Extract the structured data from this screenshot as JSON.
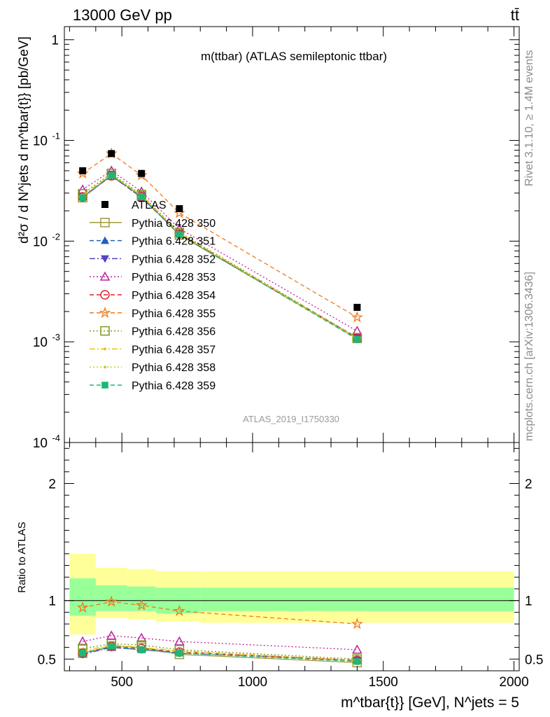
{
  "header": {
    "energy_label": "13000 GeV pp",
    "process_label": "tt̄"
  },
  "side_labels": {
    "rivet": "Rivet 3.1.10, ≥ 1.4M events",
    "mcplots": "mcplots.cern.ch [arXiv:1306.3436]"
  },
  "chart_data": [
    {
      "type": "line",
      "panel": "main",
      "title": "m(ttbar) (ATLAS semileptonic ttbar)",
      "ylabel": "d²σ / d N^jets d m^tbar{t}} [pb/GeV]",
      "xlabel": "",
      "yscale": "log",
      "ylim": [
        0.0001,
        1.35
      ],
      "xlim": [
        280,
        2020
      ],
      "y_tick_labels": [
        "10^-4",
        "10^-3",
        "10^-2",
        "10^-1",
        "1"
      ],
      "watermark": "ATLAS_2019_I1750330",
      "x": [
        350,
        460,
        575,
        720,
        1400
      ],
      "x_edges": [
        300,
        400,
        520,
        630,
        800,
        2000
      ],
      "data": {
        "name": "ATLAS",
        "values": [
          0.05,
          0.074,
          0.047,
          0.021,
          0.0022
        ]
      },
      "legend_position": "center-left",
      "series": [
        {
          "name": "Pythia 6.428 350",
          "color": "#a09a3c",
          "marker": "open-square",
          "dash": "solid",
          "values": [
            0.027,
            0.045,
            0.028,
            0.0115,
            0.00108
          ]
        },
        {
          "name": "Pythia 6.428 351",
          "color": "#1f5fbf",
          "marker": "filled-triangle-up",
          "dash": "dashed",
          "values": [
            0.0275,
            0.045,
            0.027,
            0.0118,
            0.0011
          ]
        },
        {
          "name": "Pythia 6.428 352",
          "color": "#5a3fbf",
          "marker": "filled-triangle-down",
          "dash": "dashdot",
          "values": [
            0.027,
            0.0445,
            0.027,
            0.0117,
            0.00109
          ]
        },
        {
          "name": "Pythia 6.428 353",
          "color": "#c0209e",
          "marker": "open-triangle-up",
          "dash": "dotted",
          "values": [
            0.0325,
            0.05,
            0.031,
            0.0133,
            0.00128
          ]
        },
        {
          "name": "Pythia 6.428 354",
          "color": "#e0202a",
          "marker": "open-circle",
          "dash": "dashed",
          "values": [
            0.0275,
            0.0445,
            0.0275,
            0.0118,
            0.00109
          ]
        },
        {
          "name": "Pythia 6.428 355",
          "color": "#f07a1a",
          "marker": "open-star",
          "dash": "dashed",
          "values": [
            0.047,
            0.074,
            0.045,
            0.019,
            0.00175
          ]
        },
        {
          "name": "Pythia 6.428 356",
          "color": "#7a9a1a",
          "marker": "open-square",
          "dash": "dotted",
          "values": [
            0.0295,
            0.047,
            0.029,
            0.0122,
            0.0011
          ]
        },
        {
          "name": "Pythia 6.428 357",
          "color": "#e6c21a",
          "marker": "small-dot",
          "dash": "dashdot",
          "values": [
            0.0285,
            0.046,
            0.0285,
            0.012,
            0.00108
          ]
        },
        {
          "name": "Pythia 6.428 358",
          "color": "#c8d21a",
          "marker": "small-dot",
          "dash": "dotted",
          "values": [
            0.028,
            0.0455,
            0.028,
            0.0119,
            0.00107
          ]
        },
        {
          "name": "Pythia 6.428 359",
          "color": "#1ab87a",
          "marker": "filled-square",
          "dash": "dashed",
          "values": [
            0.027,
            0.045,
            0.0275,
            0.0116,
            0.00106
          ]
        }
      ]
    },
    {
      "type": "line",
      "panel": "ratio",
      "ylabel": "Ratio to ATLAS",
      "xlabel": "m^tbar{t}} [GeV], N^jets = 5",
      "ylim": [
        0.4,
        2.35
      ],
      "xlim": [
        280,
        2020
      ],
      "x_ticks": [
        500,
        1000,
        1500,
        2000
      ],
      "y_ticks": [
        0.5,
        1,
        2
      ],
      "x": [
        350,
        460,
        575,
        720,
        1400
      ],
      "bands": {
        "x_edges": [
          300,
          400,
          520,
          630,
          800,
          2000
        ],
        "stat_sys_inner": [
          [
            0.87,
            1.19
          ],
          [
            0.91,
            1.13
          ],
          [
            0.91,
            1.12
          ],
          [
            0.89,
            1.11
          ],
          [
            0.91,
            1.11
          ]
        ],
        "stat_sys_outer": [
          [
            0.71,
            1.4
          ],
          [
            0.85,
            1.28
          ],
          [
            0.84,
            1.27
          ],
          [
            0.82,
            1.25
          ],
          [
            0.81,
            1.25
          ]
        ],
        "inner_color": "#99ff99",
        "outer_color": "#ffff99"
      },
      "series": [
        {
          "name": "Pythia 6.428 350",
          "color": "#a09a3c",
          "marker": "open-square",
          "dash": "solid",
          "values": [
            0.55,
            0.61,
            0.6,
            0.54,
            0.47
          ]
        },
        {
          "name": "Pythia 6.428 351",
          "color": "#1f5fbf",
          "marker": "filled-triangle-up",
          "dash": "dashed",
          "values": [
            0.55,
            0.6,
            0.58,
            0.56,
            0.49
          ]
        },
        {
          "name": "Pythia 6.428 352",
          "color": "#5a3fbf",
          "marker": "filled-triangle-down",
          "dash": "dashdot",
          "values": [
            0.54,
            0.6,
            0.58,
            0.55,
            0.49
          ]
        },
        {
          "name": "Pythia 6.428 353",
          "color": "#c0209e",
          "marker": "open-triangle-up",
          "dash": "dotted",
          "values": [
            0.65,
            0.7,
            0.68,
            0.65,
            0.58
          ]
        },
        {
          "name": "Pythia 6.428 354",
          "color": "#e0202a",
          "marker": "open-circle",
          "dash": "dashed",
          "values": [
            0.55,
            0.61,
            0.59,
            0.56,
            0.49
          ]
        },
        {
          "name": "Pythia 6.428 355",
          "color": "#f07a1a",
          "marker": "open-star",
          "dash": "dashed",
          "values": [
            0.94,
            0.99,
            0.96,
            0.91,
            0.8
          ]
        },
        {
          "name": "Pythia 6.428 356",
          "color": "#7a9a1a",
          "marker": "open-square",
          "dash": "dotted",
          "values": [
            0.59,
            0.63,
            0.62,
            0.58,
            0.5
          ]
        },
        {
          "name": "Pythia 6.428 357",
          "color": "#e6c21a",
          "marker": "small-dot",
          "dash": "dashdot",
          "values": [
            0.57,
            0.62,
            0.6,
            0.57,
            0.49
          ]
        },
        {
          "name": "Pythia 6.428 358",
          "color": "#c8d21a",
          "marker": "small-dot",
          "dash": "dotted",
          "values": [
            0.56,
            0.61,
            0.6,
            0.56,
            0.48
          ]
        },
        {
          "name": "Pythia 6.428 359",
          "color": "#1ab87a",
          "marker": "filled-square",
          "dash": "dashed",
          "values": [
            0.55,
            0.61,
            0.58,
            0.55,
            0.48
          ]
        }
      ]
    }
  ]
}
